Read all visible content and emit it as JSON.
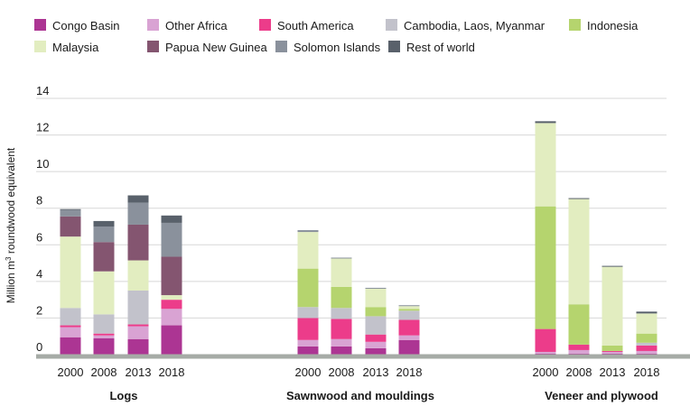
{
  "chart_data": {
    "type": "bar",
    "stacked": true,
    "ylabel_prefix": "Million m",
    "ylabel_sup": "3",
    "ylabel_suffix": " roundwood equivalent",
    "ylim": [
      0,
      14
    ],
    "yticks": [
      0,
      2,
      4,
      6,
      8,
      10,
      12,
      14
    ],
    "grid": true,
    "legend_position": "top",
    "series": [
      {
        "name": "Congo Basin",
        "color": "#ac3593"
      },
      {
        "name": "Other Africa",
        "color": "#d9a3d3"
      },
      {
        "name": "South America",
        "color": "#ec3c8a"
      },
      {
        "name": "Cambodia, Laos, Myanmar",
        "color": "#c2c2cb"
      },
      {
        "name": "Indonesia",
        "color": "#b5d46e"
      },
      {
        "name": "Malaysia",
        "color": "#e2edc0"
      },
      {
        "name": "Papua New Guinea",
        "color": "#845570"
      },
      {
        "name": "Solomon Islands",
        "color": "#8a919c"
      },
      {
        "name": "Rest of world",
        "color": "#59616b"
      }
    ],
    "groups": [
      {
        "label": "Logs",
        "bars": [
          {
            "x": "2000",
            "values": [
              0.95,
              0.55,
              0.1,
              0.95,
              0.0,
              3.9,
              1.1,
              0.35,
              0.05
            ]
          },
          {
            "x": "2008",
            "values": [
              0.9,
              0.15,
              0.1,
              1.05,
              0.0,
              2.35,
              1.6,
              0.85,
              0.3
            ]
          },
          {
            "x": "2013",
            "values": [
              0.85,
              0.7,
              0.1,
              1.85,
              0.0,
              1.65,
              1.95,
              1.2,
              0.4
            ]
          },
          {
            "x": "2018",
            "values": [
              1.6,
              0.9,
              0.5,
              0.0,
              0.0,
              0.25,
              2.1,
              1.85,
              0.4
            ]
          }
        ]
      },
      {
        "label": "Sawnwood and mouldings",
        "bars": [
          {
            "x": "2000",
            "values": [
              0.45,
              0.35,
              1.2,
              0.6,
              2.1,
              2.0,
              0.0,
              0.1,
              0.0
            ]
          },
          {
            "x": "2008",
            "values": [
              0.45,
              0.4,
              1.1,
              0.6,
              1.15,
              1.55,
              0.0,
              0.05,
              0.0
            ]
          },
          {
            "x": "2013",
            "values": [
              0.35,
              0.35,
              0.4,
              1.0,
              0.5,
              1.0,
              0.0,
              0.05,
              0.0
            ]
          },
          {
            "x": "2018",
            "values": [
              0.8,
              0.25,
              0.85,
              0.5,
              0.1,
              0.15,
              0.0,
              0.05,
              0.0
            ]
          }
        ]
      },
      {
        "label": "Veneer and plywood",
        "bars": [
          {
            "x": "2000",
            "values": [
              0.05,
              0.1,
              1.25,
              0.0,
              6.7,
              4.55,
              0.0,
              0.0,
              0.1
            ]
          },
          {
            "x": "2008",
            "values": [
              0.05,
              0.2,
              0.3,
              0.0,
              2.2,
              5.75,
              0.0,
              0.0,
              0.05
            ]
          },
          {
            "x": "2013",
            "values": [
              0.05,
              0.1,
              0.05,
              0.0,
              0.3,
              4.3,
              0.0,
              0.0,
              0.05
            ]
          },
          {
            "x": "2018",
            "values": [
              0.05,
              0.15,
              0.3,
              0.15,
              0.5,
              1.1,
              0.0,
              0.0,
              0.1
            ]
          }
        ]
      }
    ]
  }
}
